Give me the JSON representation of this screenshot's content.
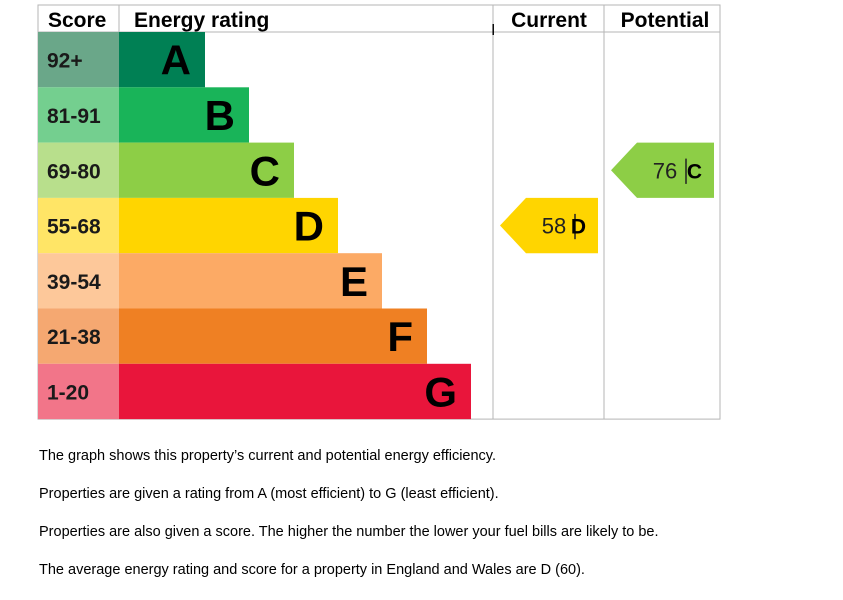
{
  "chart_data": {
    "type": "bar",
    "headers": {
      "score": "Score",
      "rating": "Energy rating",
      "current": "Current",
      "potential": "Potential"
    },
    "bands": [
      {
        "score": "92+",
        "letter": "A",
        "min": 92,
        "max": 100,
        "color": "#008054",
        "score_bg": "#6aa789"
      },
      {
        "score": "81-91",
        "letter": "B",
        "min": 81,
        "max": 91,
        "color": "#19b459",
        "score_bg": "#74cf8f"
      },
      {
        "score": "69-80",
        "letter": "C",
        "min": 69,
        "max": 80,
        "color": "#8dce46",
        "score_bg": "#b8df8c"
      },
      {
        "score": "55-68",
        "letter": "D",
        "min": 55,
        "max": 68,
        "color": "#ffd500",
        "score_bg": "#ffe566"
      },
      {
        "score": "39-54",
        "letter": "E",
        "min": 39,
        "max": 54,
        "color": "#fcaa65",
        "score_bg": "#fdc89a"
      },
      {
        "score": "21-38",
        "letter": "F",
        "min": 21,
        "max": 38,
        "color": "#ef8023",
        "score_bg": "#f5a871"
      },
      {
        "score": "1-20",
        "letter": "G",
        "min": 1,
        "max": 20,
        "color": "#e9153b",
        "score_bg": "#f27589"
      }
    ],
    "current": {
      "value": 58,
      "letter": "D",
      "color": "#ffd500"
    },
    "potential": {
      "value": 76,
      "letter": "C",
      "color": "#8dce46"
    }
  },
  "notes": [
    "The graph shows this property’s current and potential energy efficiency.",
    "Properties are given a rating from A (most efficient) to G (least efficient).",
    "Properties are also given a score. The higher the number the lower your fuel bills are likely to be.",
    "The average energy rating and score for a property in England and Wales are D (60)."
  ]
}
